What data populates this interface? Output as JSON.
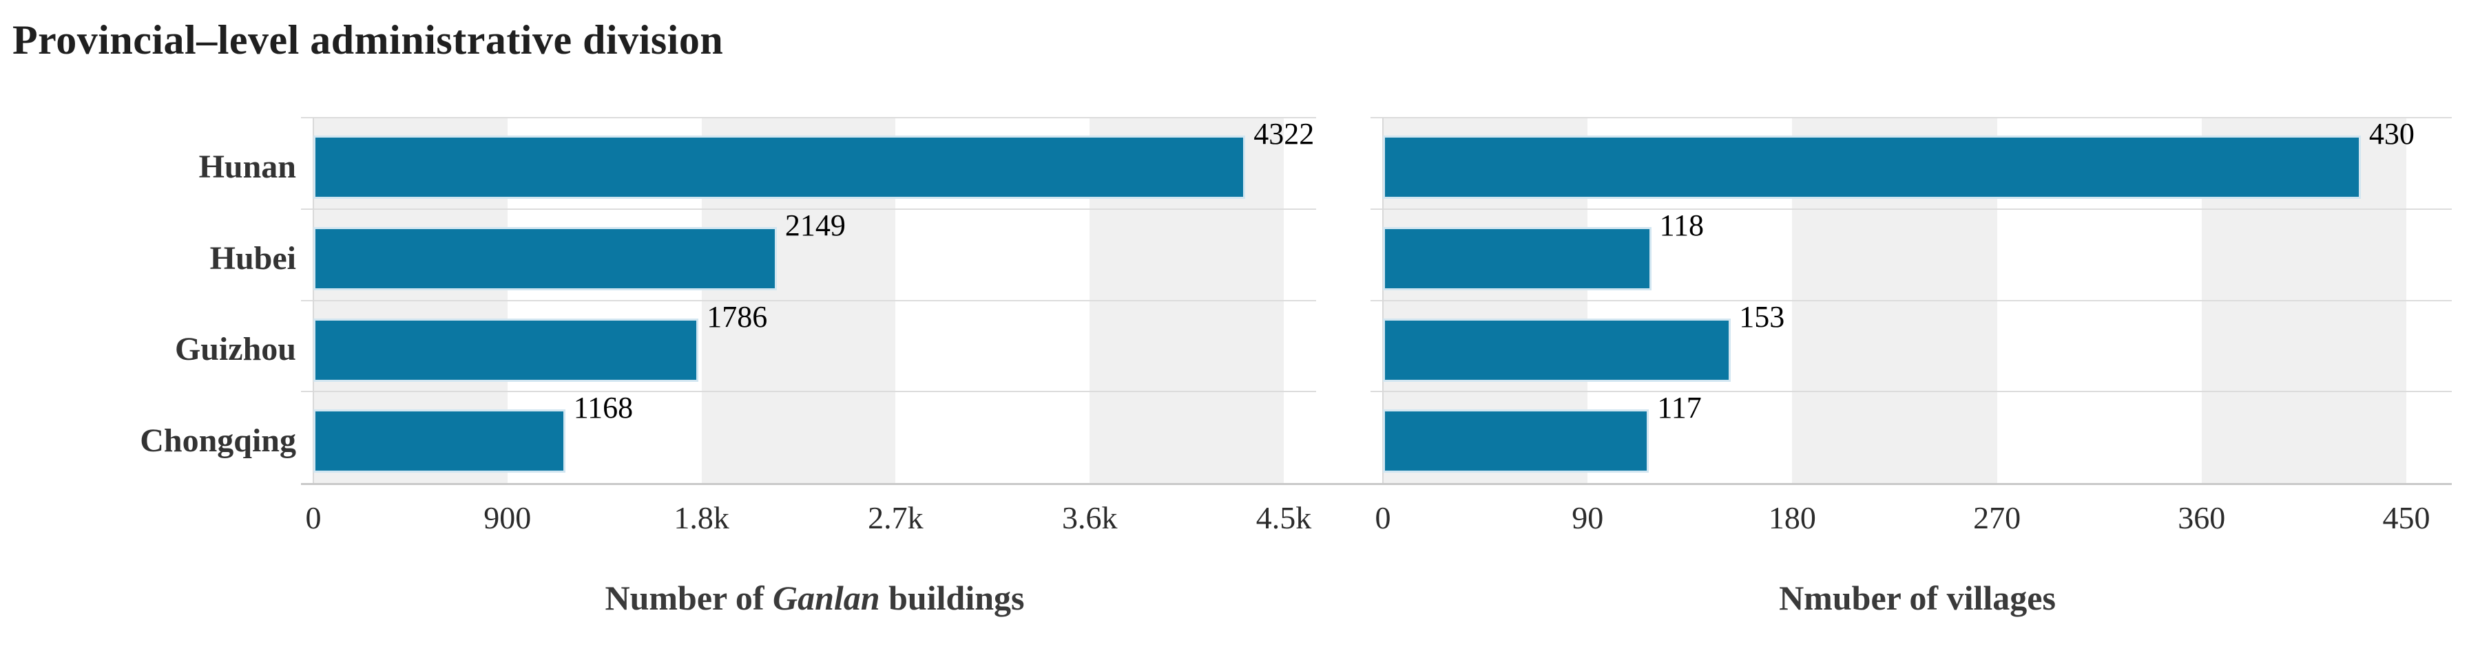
{
  "title": "Provincial–level administrative division",
  "colors": {
    "bar": "#0b77a2",
    "bar_edge": "#d2e6f1",
    "band": "#f0f0f0",
    "gridline": "#dcdcdc",
    "yaxis_line": "#d9d9d9",
    "axis_baseline": "#c9c9c9",
    "title_text": "#1f1f1f",
    "category_text": "#333333",
    "value_text": "#000000",
    "tick_text": "#2b2b2b",
    "axis_title_text": "#3a3a3a"
  },
  "categories": [
    "Hunan",
    "Hubei",
    "Guizhou",
    "Chongqing"
  ],
  "chart_data": [
    {
      "type": "bar",
      "name": "ganlan-buildings",
      "orientation": "horizontal",
      "categories": [
        "Hunan",
        "Hubei",
        "Guizhou",
        "Chongqing"
      ],
      "values": [
        4322,
        2149,
        1786,
        1168
      ],
      "value_labels": [
        "4322",
        "2149",
        "1786",
        "1168"
      ],
      "ticks": [
        {
          "value": 0,
          "label": "0"
        },
        {
          "value": 900,
          "label": "900"
        },
        {
          "value": 1800,
          "label": "1.8k"
        },
        {
          "value": 2700,
          "label": "2.7k"
        },
        {
          "value": 3600,
          "label": "3.6k"
        },
        {
          "value": 4500,
          "label": "4.5k"
        }
      ],
      "xlim": [
        0,
        4650
      ],
      "xlabel": "Number of Ganlan buildings",
      "xlabel_parts": [
        {
          "text": "Number of ",
          "italic": false
        },
        {
          "text": "Ganlan",
          "italic": true
        },
        {
          "text": " buildings",
          "italic": false
        }
      ],
      "grid": "horizontal gridlines at category boundaries; alternating vertical background bands per tick interval",
      "legend": "none"
    },
    {
      "type": "bar",
      "name": "villages",
      "orientation": "horizontal",
      "categories": [
        "Hunan",
        "Hubei",
        "Guizhou",
        "Chongqing"
      ],
      "values": [
        430,
        118,
        153,
        117
      ],
      "value_labels": [
        "430",
        "118",
        "153",
        "117"
      ],
      "ticks": [
        {
          "value": 0,
          "label": "0"
        },
        {
          "value": 90,
          "label": "90"
        },
        {
          "value": 180,
          "label": "180"
        },
        {
          "value": 270,
          "label": "270"
        },
        {
          "value": 360,
          "label": "360"
        },
        {
          "value": 450,
          "label": "450"
        }
      ],
      "xlim": [
        0,
        470
      ],
      "xlabel": "Nmuber of villages",
      "xlabel_parts": [
        {
          "text": "Nmuber of villages",
          "italic": false
        }
      ],
      "grid": "horizontal gridlines at category boundaries; alternating vertical background bands per tick interval",
      "legend": "none"
    }
  ]
}
